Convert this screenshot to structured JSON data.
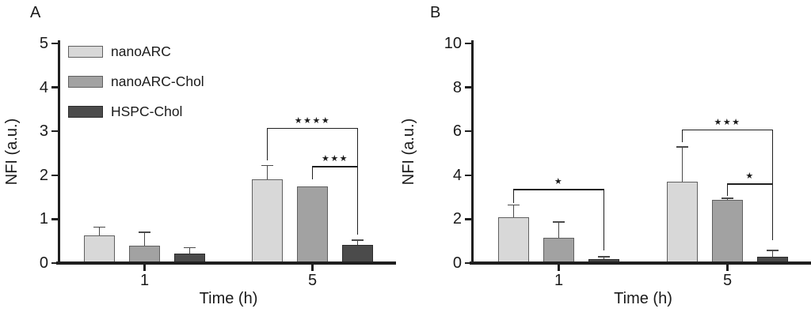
{
  "figure": {
    "background": "#ffffff",
    "text_color": "#1a1a1a"
  },
  "chart_data": [
    {
      "type": "bar",
      "panel_label": "A",
      "ylabel": "NFI (a.u.)",
      "xlabel": "Time (h)",
      "categories": [
        "1",
        "5"
      ],
      "ylim": [
        0,
        5
      ],
      "y_ticks": [
        "0",
        "1",
        "2",
        "3",
        "4",
        "5"
      ],
      "grid": false,
      "legend_position": "top-left-inside",
      "series": [
        {
          "name": "nanoARC",
          "fill": "#d8d8d8",
          "border": "#606060",
          "values": [
            0.63,
            1.9
          ],
          "errors_up": [
            0.19,
            0.32
          ]
        },
        {
          "name": "nanoARC-Chol",
          "fill": "#a2a2a2",
          "border": "#606060",
          "values": [
            0.39,
            1.75
          ],
          "errors_up": [
            0.31,
            0
          ]
        },
        {
          "name": "HSPC-Chol",
          "fill": "#4b4b4b",
          "border": "#2b2b2b",
          "values": [
            0.22,
            0.42
          ],
          "errors_up": [
            0.13,
            0.1
          ]
        }
      ],
      "significance": [
        {
          "stars": "★★★★",
          "group": 1,
          "from_series": 0,
          "to_series": 2,
          "bar_y": 3.08,
          "left_leg_to": 2.34,
          "right_leg_to": 2.21
        },
        {
          "stars": "★★★",
          "group": 1,
          "from_series": 1,
          "to_series": 2,
          "bar_y": 2.21,
          "left_leg_to": 1.9,
          "right_leg_to": 0.65
        }
      ]
    },
    {
      "type": "bar",
      "panel_label": "B",
      "ylabel": "NFI (a.u.)",
      "xlabel": "Time (h)",
      "categories": [
        "1",
        "5"
      ],
      "ylim": [
        0,
        10
      ],
      "y_ticks": [
        "0",
        "2",
        "4",
        "6",
        "8",
        "10"
      ],
      "grid": false,
      "legend_position": "none",
      "series": [
        {
          "name": "nanoARC",
          "fill": "#d8d8d8",
          "border": "#606060",
          "values": [
            2.1,
            3.7
          ],
          "errors_up": [
            0.55,
            1.6
          ]
        },
        {
          "name": "nanoARC-Chol",
          "fill": "#a2a2a2",
          "border": "#606060",
          "values": [
            1.15,
            2.86
          ],
          "errors_up": [
            0.72,
            0.1
          ]
        },
        {
          "name": "HSPC-Chol",
          "fill": "#4b4b4b",
          "border": "#2b2b2b",
          "values": [
            0.17,
            0.28
          ],
          "errors_up": [
            0.12,
            0.3
          ]
        }
      ],
      "significance": [
        {
          "stars": "★",
          "group": 0,
          "from_series": 0,
          "to_series": 2,
          "bar_y": 3.38,
          "left_leg_to": 2.73,
          "right_leg_to": 0.58
        },
        {
          "stars": "★★★",
          "group": 1,
          "from_series": 0,
          "to_series": 2,
          "bar_y": 6.08,
          "left_leg_to": 5.5,
          "right_leg_to": 3.63
        },
        {
          "stars": "★",
          "group": 1,
          "from_series": 1,
          "to_series": 2,
          "bar_y": 3.63,
          "left_leg_to": 3.06,
          "right_leg_to": 1.04
        }
      ]
    }
  ]
}
